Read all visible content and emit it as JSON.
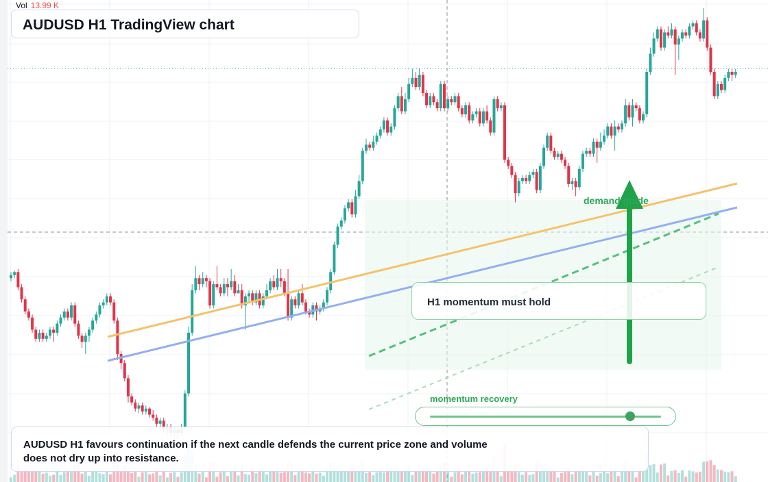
{
  "volume_label": "Vol",
  "volume_value": "13.99 K",
  "title": "AUDUSD H1 TradingView chart",
  "callout": "H1 momentum must hold",
  "zone_label": "demand guide",
  "slider_label": "momentum recovery",
  "slider_value": 0.86,
  "note": "AUDUSD H1 favours continuation if the next candle defends the current price zone and volume does not dry up into resistance.",
  "colors": {
    "up": "#26a69a",
    "down": "#e0344a",
    "trend_orange": "#f5c26b",
    "trend_blue": "#93aff0",
    "signal_green": "#1fa24a",
    "grid": "#eef0f4"
  },
  "chart_data": {
    "type": "candlestick",
    "symbol": "AUDUSD",
    "timeframe": "H1",
    "grid": true,
    "candles": [
      [
        0.46,
        0.47,
        0.48,
        0.45
      ],
      [
        0.47,
        0.48,
        0.485,
        0.46
      ],
      [
        0.48,
        0.43,
        0.49,
        0.42
      ],
      [
        0.43,
        0.39,
        0.44,
        0.38
      ],
      [
        0.39,
        0.35,
        0.4,
        0.34
      ],
      [
        0.35,
        0.33,
        0.36,
        0.32
      ],
      [
        0.33,
        0.29,
        0.34,
        0.28
      ],
      [
        0.29,
        0.26,
        0.3,
        0.25
      ],
      [
        0.26,
        0.28,
        0.29,
        0.25
      ],
      [
        0.28,
        0.26,
        0.29,
        0.25
      ],
      [
        0.26,
        0.27,
        0.28,
        0.25
      ],
      [
        0.27,
        0.29,
        0.3,
        0.26
      ],
      [
        0.29,
        0.28,
        0.3,
        0.25
      ],
      [
        0.28,
        0.31,
        0.32,
        0.27
      ],
      [
        0.31,
        0.33,
        0.34,
        0.3
      ],
      [
        0.33,
        0.35,
        0.36,
        0.32
      ],
      [
        0.35,
        0.33,
        0.36,
        0.32
      ],
      [
        0.33,
        0.37,
        0.38,
        0.32
      ],
      [
        0.37,
        0.31,
        0.38,
        0.3
      ],
      [
        0.31,
        0.27,
        0.32,
        0.26
      ],
      [
        0.27,
        0.25,
        0.28,
        0.23
      ],
      [
        0.25,
        0.27,
        0.28,
        0.21
      ],
      [
        0.27,
        0.29,
        0.3,
        0.25
      ],
      [
        0.29,
        0.32,
        0.33,
        0.28
      ],
      [
        0.32,
        0.34,
        0.35,
        0.31
      ],
      [
        0.34,
        0.37,
        0.38,
        0.33
      ],
      [
        0.37,
        0.38,
        0.39,
        0.36
      ],
      [
        0.38,
        0.4,
        0.41,
        0.37
      ],
      [
        0.4,
        0.38,
        0.41,
        0.37
      ],
      [
        0.38,
        0.32,
        0.39,
        0.31
      ],
      [
        0.32,
        0.21,
        0.33,
        0.19
      ],
      [
        0.21,
        0.18,
        0.22,
        0.16
      ],
      [
        0.18,
        0.13,
        0.19,
        0.12
      ],
      [
        0.13,
        0.07,
        0.14,
        0.05
      ],
      [
        0.07,
        0.05,
        0.08,
        0.04
      ],
      [
        0.05,
        0.03,
        0.06,
        0.02
      ],
      [
        0.03,
        0.04,
        0.05,
        0.015
      ],
      [
        0.04,
        0.02,
        0.05,
        0.01
      ],
      [
        0.02,
        0.03,
        0.04,
        0.01
      ],
      [
        0.03,
        0.01,
        0.035,
        0.0
      ],
      [
        0.01,
        0.0,
        0.025,
        -0.01
      ],
      [
        0.0,
        -0.02,
        0.01,
        -0.03
      ],
      [
        -0.02,
        -0.01,
        0.0,
        -0.04
      ],
      [
        -0.01,
        -0.04,
        0.0,
        -0.05
      ],
      [
        -0.04,
        -0.03,
        -0.02,
        -0.06
      ],
      [
        -0.03,
        -0.05,
        -0.02,
        -0.06
      ],
      [
        -0.05,
        -0.04,
        -0.03,
        -0.07
      ],
      [
        -0.04,
        -0.05,
        -0.03,
        -0.07
      ],
      [
        -0.05,
        -0.03,
        -0.02,
        -0.06
      ],
      [
        -0.03,
        0.08,
        0.09,
        -0.04
      ],
      [
        0.08,
        0.28,
        0.3,
        0.07
      ],
      [
        0.28,
        0.42,
        0.44,
        0.27
      ],
      [
        0.42,
        0.46,
        0.5,
        0.41
      ],
      [
        0.46,
        0.44,
        0.47,
        0.42
      ],
      [
        0.44,
        0.46,
        0.48,
        0.43
      ],
      [
        0.46,
        0.45,
        0.47,
        0.43
      ],
      [
        0.45,
        0.37,
        0.46,
        0.36
      ],
      [
        0.37,
        0.44,
        0.45,
        0.36
      ],
      [
        0.44,
        0.43,
        0.5,
        0.42
      ],
      [
        0.43,
        0.41,
        0.44,
        0.4
      ],
      [
        0.41,
        0.44,
        0.46,
        0.4
      ],
      [
        0.44,
        0.43,
        0.46,
        0.4
      ],
      [
        0.43,
        0.45,
        0.49,
        0.42
      ],
      [
        0.45,
        0.41,
        0.47,
        0.4
      ],
      [
        0.41,
        0.42,
        0.44,
        0.41
      ],
      [
        0.42,
        0.37,
        0.44,
        0.36
      ],
      [
        0.37,
        0.4,
        0.41,
        0.29
      ],
      [
        0.4,
        0.41,
        0.42,
        0.38
      ],
      [
        0.41,
        0.38,
        0.42,
        0.37
      ],
      [
        0.38,
        0.41,
        0.42,
        0.37
      ],
      [
        0.41,
        0.37,
        0.42,
        0.36
      ],
      [
        0.37,
        0.4,
        0.41,
        0.36
      ],
      [
        0.4,
        0.42,
        0.44,
        0.39
      ],
      [
        0.42,
        0.45,
        0.46,
        0.41
      ],
      [
        0.45,
        0.43,
        0.47,
        0.42
      ],
      [
        0.43,
        0.46,
        0.49,
        0.42
      ],
      [
        0.46,
        0.45,
        0.49,
        0.43
      ],
      [
        0.45,
        0.41,
        0.46,
        0.4
      ],
      [
        0.41,
        0.33,
        0.49,
        0.32
      ],
      [
        0.33,
        0.39,
        0.4,
        0.32
      ],
      [
        0.39,
        0.37,
        0.4,
        0.36
      ],
      [
        0.37,
        0.41,
        0.42,
        0.36
      ],
      [
        0.41,
        0.38,
        0.44,
        0.37
      ],
      [
        0.38,
        0.35,
        0.39,
        0.34
      ],
      [
        0.35,
        0.34,
        0.36,
        0.33
      ],
      [
        0.34,
        0.37,
        0.38,
        0.33
      ],
      [
        0.37,
        0.35,
        0.38,
        0.32
      ],
      [
        0.35,
        0.36,
        0.37,
        0.34
      ],
      [
        0.36,
        0.38,
        0.39,
        0.35
      ],
      [
        0.38,
        0.42,
        0.43,
        0.37
      ],
      [
        0.42,
        0.48,
        0.49,
        0.41
      ],
      [
        0.48,
        0.57,
        0.58,
        0.47
      ],
      [
        0.57,
        0.63,
        0.64,
        0.56
      ],
      [
        0.63,
        0.65,
        0.66,
        0.62
      ],
      [
        0.65,
        0.69,
        0.7,
        0.64
      ],
      [
        0.69,
        0.71,
        0.72,
        0.68
      ],
      [
        0.71,
        0.67,
        0.72,
        0.66
      ],
      [
        0.67,
        0.73,
        0.75,
        0.66
      ],
      [
        0.73,
        0.78,
        0.8,
        0.72
      ],
      [
        0.78,
        0.88,
        0.89,
        0.77
      ],
      [
        0.88,
        0.9,
        0.92,
        0.87
      ],
      [
        0.9,
        0.89,
        0.91,
        0.88
      ],
      [
        0.89,
        0.91,
        0.93,
        0.88
      ],
      [
        0.91,
        0.93,
        0.94,
        0.9
      ],
      [
        0.93,
        0.95,
        0.96,
        0.92
      ],
      [
        0.95,
        0.98,
        0.99,
        0.94
      ],
      [
        0.98,
        0.94,
        0.99,
        0.93
      ],
      [
        0.94,
        0.96,
        0.97,
        0.93
      ],
      [
        0.96,
        1.02,
        1.03,
        0.95
      ],
      [
        1.02,
        1.06,
        1.07,
        1.01
      ],
      [
        1.06,
        1.01,
        1.09,
        1.0
      ],
      [
        1.01,
        1.05,
        1.07,
        1.0
      ],
      [
        1.05,
        1.1,
        1.12,
        1.04
      ],
      [
        1.1,
        1.12,
        1.15,
        1.09
      ],
      [
        1.12,
        1.09,
        1.14,
        1.08
      ],
      [
        1.09,
        1.13,
        1.15,
        1.08
      ],
      [
        1.13,
        1.07,
        1.14,
        1.06
      ],
      [
        1.07,
        1.03,
        1.08,
        1.02
      ],
      [
        1.03,
        1.06,
        1.07,
        1.02
      ],
      [
        1.06,
        1.04,
        1.07,
        1.03
      ],
      [
        1.04,
        1.02,
        1.05,
        1.01
      ],
      [
        1.02,
        1.1,
        1.11,
        1.01
      ],
      [
        1.1,
        1.02,
        1.11,
        1.01
      ],
      [
        1.02,
        1.05,
        1.06,
        1.01
      ],
      [
        1.05,
        1.04,
        1.06,
        1.03
      ],
      [
        1.04,
        1.06,
        1.07,
        1.03
      ],
      [
        1.06,
        1.02,
        1.07,
        1.01
      ],
      [
        1.02,
        1.0,
        1.03,
        0.99
      ],
      [
        1.0,
        1.03,
        1.04,
        0.99
      ],
      [
        1.03,
        0.98,
        1.04,
        0.97
      ],
      [
        0.98,
        1.0,
        1.01,
        0.97
      ],
      [
        1.0,
        1.01,
        1.02,
        0.99
      ],
      [
        1.01,
        0.97,
        1.02,
        0.96
      ],
      [
        0.97,
        1.01,
        1.02,
        0.96
      ],
      [
        1.01,
        0.98,
        1.03,
        0.97
      ],
      [
        0.98,
        0.94,
        0.99,
        0.93
      ],
      [
        0.94,
        1.05,
        1.06,
        0.93
      ],
      [
        1.05,
        1.02,
        1.06,
        1.01
      ],
      [
        1.02,
        1.03,
        1.04,
        1.01
      ],
      [
        1.03,
        0.85,
        1.04,
        0.84
      ],
      [
        0.85,
        0.83,
        0.86,
        0.82
      ],
      [
        0.83,
        0.8,
        0.84,
        0.79
      ],
      [
        0.8,
        0.74,
        0.81,
        0.71
      ],
      [
        0.74,
        0.78,
        0.79,
        0.73
      ],
      [
        0.78,
        0.79,
        0.8,
        0.77
      ],
      [
        0.79,
        0.78,
        0.8,
        0.77
      ],
      [
        0.78,
        0.8,
        0.81,
        0.77
      ],
      [
        0.8,
        0.81,
        0.82,
        0.79
      ],
      [
        0.81,
        0.75,
        0.82,
        0.74
      ],
      [
        0.75,
        0.83,
        0.84,
        0.74
      ],
      [
        0.83,
        0.89,
        0.9,
        0.82
      ],
      [
        0.89,
        0.93,
        0.94,
        0.88
      ],
      [
        0.93,
        0.88,
        0.94,
        0.87
      ],
      [
        0.88,
        0.86,
        0.89,
        0.85
      ],
      [
        0.86,
        0.87,
        0.88,
        0.85
      ],
      [
        0.87,
        0.85,
        0.88,
        0.84
      ],
      [
        0.85,
        0.83,
        0.86,
        0.82
      ],
      [
        0.83,
        0.77,
        0.84,
        0.76
      ],
      [
        0.77,
        0.78,
        0.79,
        0.75
      ],
      [
        0.78,
        0.76,
        0.79,
        0.73
      ],
      [
        0.76,
        0.82,
        0.83,
        0.75
      ],
      [
        0.82,
        0.87,
        0.88,
        0.81
      ],
      [
        0.87,
        0.88,
        0.89,
        0.86
      ],
      [
        0.88,
        0.87,
        0.89,
        0.86
      ],
      [
        0.87,
        0.91,
        0.92,
        0.86
      ],
      [
        0.91,
        0.89,
        0.92,
        0.84
      ],
      [
        0.89,
        0.91,
        0.94,
        0.88
      ],
      [
        0.91,
        0.93,
        0.95,
        0.9
      ],
      [
        0.93,
        0.96,
        0.97,
        0.92
      ],
      [
        0.96,
        0.93,
        0.97,
        0.92
      ],
      [
        0.93,
        0.96,
        0.98,
        0.88
      ],
      [
        0.96,
        0.95,
        0.97,
        0.94
      ],
      [
        0.95,
        0.97,
        0.98,
        0.94
      ],
      [
        0.97,
        1.03,
        1.05,
        0.96
      ],
      [
        1.03,
        0.99,
        1.04,
        0.98
      ],
      [
        0.99,
        1.03,
        1.05,
        0.96
      ],
      [
        1.03,
        1.02,
        1.04,
        1.01
      ],
      [
        1.02,
        0.98,
        1.03,
        0.97
      ],
      [
        0.98,
        1.0,
        1.01,
        0.97
      ],
      [
        1.0,
        1.14,
        1.15,
        0.99
      ],
      [
        1.14,
        1.2,
        1.22,
        1.13
      ],
      [
        1.2,
        1.25,
        1.27,
        1.19
      ],
      [
        1.25,
        1.28,
        1.29,
        1.24
      ],
      [
        1.28,
        1.22,
        1.29,
        1.21
      ],
      [
        1.22,
        1.27,
        1.28,
        1.21
      ],
      [
        1.27,
        1.26,
        1.29,
        1.25
      ],
      [
        1.26,
        1.28,
        1.3,
        1.25
      ],
      [
        1.28,
        1.23,
        1.29,
        1.13
      ],
      [
        1.23,
        1.25,
        1.26,
        1.18
      ],
      [
        1.25,
        1.27,
        1.28,
        1.24
      ],
      [
        1.27,
        1.26,
        1.28,
        1.25
      ],
      [
        1.26,
        1.29,
        1.3,
        1.25
      ],
      [
        1.29,
        1.3,
        1.31,
        1.28
      ],
      [
        1.3,
        1.27,
        1.31,
        1.26
      ],
      [
        1.27,
        1.25,
        1.28,
        1.24
      ],
      [
        1.25,
        1.31,
        1.35,
        1.24
      ],
      [
        1.31,
        1.22,
        1.32,
        1.21
      ],
      [
        1.22,
        1.14,
        1.23,
        1.13
      ],
      [
        1.14,
        1.06,
        1.15,
        1.05
      ],
      [
        1.06,
        1.1,
        1.11,
        1.05
      ],
      [
        1.1,
        1.08,
        1.11,
        1.07
      ],
      [
        1.08,
        1.12,
        1.13,
        1.07
      ],
      [
        1.12,
        1.14,
        1.15,
        1.11
      ],
      [
        1.14,
        1.13,
        1.15,
        1.11
      ],
      [
        1.13,
        1.14,
        1.15,
        1.12
      ]
    ]
  }
}
